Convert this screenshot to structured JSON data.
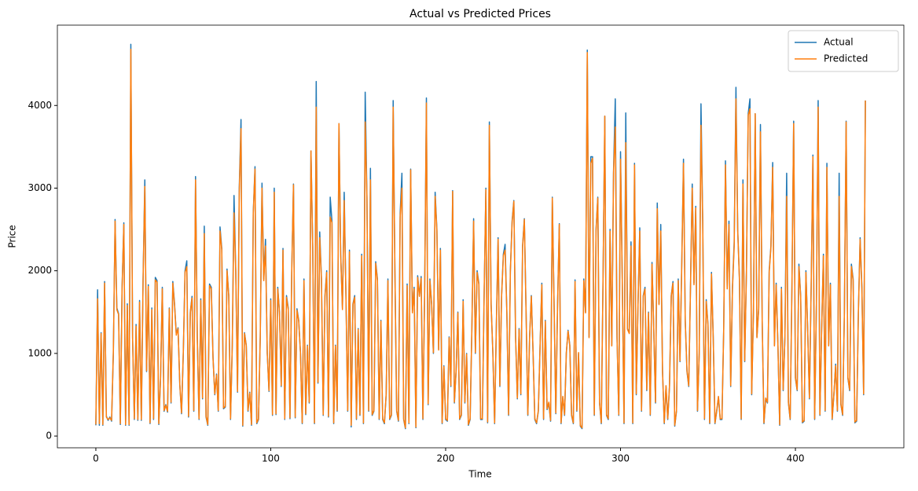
{
  "chart_data": {
    "type": "line",
    "title": "Actual vs Predicted Prices",
    "x_label": "Time",
    "y_label": "Price",
    "xlim": [
      -22,
      462
    ],
    "ylim": [
      -142,
      4972
    ],
    "xticks": [
      0,
      100,
      200,
      300,
      400
    ],
    "yticks": [
      0,
      1000,
      2000,
      3000,
      4000
    ],
    "legend": "upper right",
    "grid": false,
    "x": [
      0,
      1,
      2,
      3,
      4,
      5,
      6,
      7,
      8,
      9,
      10,
      11,
      12,
      13,
      14,
      15,
      16,
      17,
      18,
      19,
      20,
      21,
      22,
      23,
      24,
      25,
      26,
      27,
      28,
      29,
      30,
      31,
      32,
      33,
      34,
      35,
      36,
      37,
      38,
      39,
      40,
      41,
      42,
      43,
      44,
      45,
      46,
      47,
      48,
      49,
      50,
      51,
      52,
      53,
      54,
      55,
      56,
      57,
      58,
      59,
      60,
      61,
      62,
      63,
      64,
      65,
      66,
      67,
      68,
      69,
      70,
      71,
      72,
      73,
      74,
      75,
      76,
      77,
      78,
      79,
      80,
      81,
      82,
      83,
      84,
      85,
      86,
      87,
      88,
      89,
      90,
      91,
      92,
      93,
      94,
      95,
      96,
      97,
      98,
      99,
      100,
      101,
      102,
      103,
      104,
      105,
      106,
      107,
      108,
      109,
      110,
      111,
      112,
      113,
      114,
      115,
      116,
      117,
      118,
      119,
      120,
      121,
      122,
      123,
      124,
      125,
      126,
      127,
      128,
      129,
      130,
      131,
      132,
      133,
      134,
      135,
      136,
      137,
      138,
      139,
      140,
      141,
      142,
      143,
      144,
      145,
      146,
      147,
      148,
      149,
      150,
      151,
      152,
      153,
      154,
      155,
      156,
      157,
      158,
      159,
      160,
      161,
      162,
      163,
      164,
      165,
      166,
      167,
      168,
      169,
      170,
      171,
      172,
      173,
      174,
      175,
      176,
      177,
      178,
      179,
      180,
      181,
      182,
      183,
      184,
      185,
      186,
      187,
      188,
      189,
      190,
      191,
      192,
      193,
      194,
      195,
      196,
      197,
      198,
      199,
      200,
      201,
      202,
      203,
      204,
      205,
      206,
      207,
      208,
      209,
      210,
      211,
      212,
      213,
      214,
      215,
      216,
      217,
      218,
      219,
      220,
      221,
      222,
      223,
      224,
      225,
      226,
      227,
      228,
      229,
      230,
      231,
      232,
      233,
      234,
      235,
      236,
      237,
      238,
      239,
      240,
      241,
      242,
      243,
      244,
      245,
      246,
      247,
      248,
      249,
      250,
      251,
      252,
      253,
      254,
      255,
      256,
      257,
      258,
      259,
      260,
      261,
      262,
      263,
      264,
      265,
      266,
      267,
      268,
      269,
      270,
      271,
      272,
      273,
      274,
      275,
      276,
      277,
      278,
      279,
      280,
      281,
      282,
      283,
      284,
      285,
      286,
      287,
      288,
      289,
      290,
      291,
      292,
      293,
      294,
      295,
      296,
      297,
      298,
      299,
      300,
      301,
      302,
      303,
      304,
      305,
      306,
      307,
      308,
      309,
      310,
      311,
      312,
      313,
      314,
      315,
      316,
      317,
      318,
      319,
      320,
      321,
      322,
      323,
      324,
      325,
      326,
      327,
      328,
      329,
      330,
      331,
      332,
      333,
      334,
      335,
      336,
      337,
      338,
      339,
      340,
      341,
      342,
      343,
      344,
      345,
      346,
      347,
      348,
      349,
      350,
      351,
      352,
      353,
      354,
      355,
      356,
      357,
      358,
      359,
      360,
      361,
      362,
      363,
      364,
      365,
      366,
      367,
      368,
      369,
      370,
      371,
      372,
      373,
      374,
      375,
      376,
      377,
      378,
      379,
      380,
      381,
      382,
      383,
      384,
      385,
      386,
      387,
      388,
      389,
      390,
      391,
      392,
      393,
      394,
      395,
      396,
      397,
      398,
      399,
      400,
      401,
      402,
      403,
      404,
      405,
      406,
      407,
      408,
      409,
      410,
      411,
      412,
      413,
      414,
      415,
      416,
      417,
      418,
      419,
      420,
      421,
      422,
      423,
      424,
      425,
      426,
      427,
      428,
      429,
      430,
      431,
      432,
      433,
      434,
      435,
      436,
      437,
      438,
      439,
      440
    ],
    "series": [
      {
        "name": "Actual",
        "color": "#1f77b4",
        "values": [
          130,
          1770,
          130,
          1250,
          130,
          1870,
          240,
          190,
          230,
          180,
          1000,
          2620,
          1550,
          1480,
          140,
          1800,
          2580,
          130,
          1600,
          130,
          4740,
          1200,
          200,
          1350,
          190,
          1640,
          190,
          1900,
          3100,
          780,
          1830,
          150,
          1550,
          200,
          1920,
          1880,
          140,
          700,
          1800,
          300,
          380,
          290,
          1550,
          400,
          1870,
          1600,
          1230,
          1310,
          620,
          270,
          1000,
          2000,
          2120,
          230,
          1500,
          1690,
          300,
          3140,
          1200,
          200,
          1660,
          450,
          2540,
          230,
          130,
          1840,
          1800,
          950,
          500,
          750,
          300,
          2530,
          2270,
          330,
          350,
          2020,
          1700,
          200,
          1100,
          2910,
          2000,
          530,
          3000,
          3830,
          120,
          1250,
          1100,
          300,
          530,
          130,
          2700,
          3260,
          150,
          200,
          1200,
          3060,
          1900,
          2380,
          1000,
          540,
          1660,
          250,
          3000,
          260,
          1800,
          1500,
          600,
          2270,
          200,
          1700,
          1550,
          210,
          2000,
          3050,
          220,
          1540,
          1400,
          1000,
          150,
          1900,
          260,
          1100,
          400,
          3450,
          2300,
          150,
          4290,
          640,
          2470,
          1900,
          250,
          1700,
          2000,
          230,
          2890,
          2600,
          150,
          1100,
          300,
          3780,
          2200,
          1550,
          2950,
          1700,
          300,
          2250,
          110,
          1600,
          1700,
          200,
          1300,
          250,
          2200,
          150,
          4160,
          2900,
          300,
          3240,
          250,
          300,
          2110,
          1900,
          200,
          1400,
          200,
          150,
          500,
          1900,
          200,
          250,
          4060,
          2000,
          300,
          180,
          2700,
          3180,
          200,
          90,
          1840,
          150,
          3230,
          1500,
          1800,
          100,
          1940,
          1700,
          1930,
          200,
          1750,
          4090,
          380,
          1900,
          1600,
          1000,
          2950,
          2500,
          1050,
          2270,
          150,
          850,
          200,
          180,
          1200,
          600,
          2970,
          400,
          800,
          1500,
          200,
          250,
          1650,
          400,
          1000,
          130,
          200,
          1300,
          2630,
          1000,
          2000,
          1850,
          200,
          200,
          1700,
          3000,
          160,
          3800,
          1600,
          1000,
          150,
          1350,
          2400,
          600,
          1700,
          2200,
          2320,
          1500,
          250,
          2000,
          2600,
          2850,
          1200,
          450,
          1300,
          500,
          2300,
          2630,
          1500,
          250,
          1200,
          1700,
          1000,
          200,
          150,
          300,
          1100,
          1850,
          200,
          1400,
          320,
          400,
          180,
          2890,
          1600,
          270,
          1600,
          2570,
          150,
          470,
          250,
          1000,
          1280,
          1100,
          250,
          150,
          1890,
          300,
          1000,
          120,
          90,
          1900,
          1500,
          4670,
          1200,
          3380,
          3380,
          250,
          2500,
          2890,
          400,
          150,
          1900,
          3870,
          250,
          200,
          2500,
          1100,
          3200,
          4080,
          1200,
          250,
          3440,
          1900,
          150,
          3910,
          1300,
          1250,
          2350,
          150,
          3300,
          500,
          1600,
          2520,
          300,
          1700,
          1800,
          550,
          1500,
          250,
          2100,
          1300,
          400,
          2820,
          1600,
          2560,
          800,
          150,
          600,
          200,
          600,
          1700,
          1870,
          120,
          300,
          1900,
          900,
          2080,
          3350,
          1400,
          780,
          600,
          1800,
          3050,
          1850,
          2780,
          300,
          1000,
          4020,
          2600,
          200,
          1650,
          1350,
          150,
          1980,
          1200,
          150,
          300,
          470,
          200,
          200,
          1300,
          3330,
          1800,
          2600,
          600,
          1800,
          2350,
          4220,
          2500,
          1900,
          200,
          3100,
          900,
          2000,
          3900,
          4080,
          500,
          1500,
          3900,
          1200,
          1550,
          3770,
          1400,
          150,
          450,
          400,
          2000,
          2300,
          3310,
          1100,
          1850,
          1100,
          130,
          1800,
          550,
          1200,
          3180,
          400,
          200,
          1800,
          3810,
          700,
          550,
          2080,
          1700,
          160,
          180,
          2000,
          1300,
          450,
          1800,
          3400,
          200,
          1600,
          4060,
          250,
          1300,
          2200,
          300,
          3300,
          1100,
          1850,
          200,
          500,
          870,
          300,
          3180,
          380,
          250,
          1500,
          3810,
          700,
          550,
          2080,
          1900,
          160,
          180,
          1500,
          2400,
          1800,
          500,
          4060
        ]
      },
      {
        "name": "Predicted",
        "color": "#ff7f0e",
        "values": [
          140,
          1660,
          150,
          1240,
          140,
          1850,
          230,
          200,
          220,
          190,
          1020,
          2600,
          1530,
          1470,
          150,
          1780,
          2560,
          140,
          1580,
          140,
          4680,
          1190,
          210,
          1330,
          200,
          1620,
          200,
          1880,
          3020,
          790,
          1810,
          160,
          1530,
          210,
          1890,
          1860,
          150,
          710,
          1780,
          310,
          370,
          300,
          1540,
          410,
          1850,
          1580,
          1220,
          1300,
          630,
          280,
          1010,
          1980,
          2050,
          240,
          1490,
          1670,
          310,
          3100,
          1190,
          210,
          1640,
          460,
          2450,
          240,
          140,
          1820,
          1780,
          940,
          510,
          740,
          310,
          2480,
          2250,
          340,
          360,
          2000,
          1690,
          210,
          1090,
          2700,
          1980,
          540,
          2950,
          3720,
          130,
          1240,
          1090,
          310,
          520,
          140,
          2680,
          3230,
          160,
          210,
          1190,
          3000,
          1880,
          2300,
          1010,
          550,
          1640,
          260,
          2950,
          270,
          1780,
          1490,
          610,
          2250,
          210,
          1680,
          1530,
          220,
          1980,
          3040,
          230,
          1520,
          1390,
          1010,
          160,
          1880,
          270,
          1090,
          410,
          3450,
          2280,
          160,
          3980,
          650,
          2400,
          1880,
          260,
          1680,
          1980,
          240,
          2650,
          2580,
          160,
          1090,
          310,
          3780,
          2180,
          1530,
          2850,
          1690,
          310,
          2230,
          130,
          1590,
          1680,
          210,
          1290,
          260,
          2180,
          160,
          3800,
          2880,
          310,
          3100,
          260,
          310,
          2090,
          1880,
          210,
          1390,
          210,
          160,
          510,
          1880,
          210,
          260,
          3980,
          1980,
          310,
          190,
          2650,
          3000,
          210,
          100,
          1820,
          160,
          3220,
          1490,
          1780,
          110,
          1920,
          1690,
          1910,
          210,
          1730,
          4030,
          390,
          1880,
          1590,
          1010,
          2900,
          2480,
          1040,
          2250,
          160,
          840,
          210,
          190,
          1190,
          610,
          2960,
          410,
          790,
          1490,
          210,
          260,
          1630,
          410,
          990,
          140,
          210,
          1290,
          2600,
          1010,
          1980,
          1830,
          210,
          210,
          1690,
          2980,
          170,
          3760,
          1590,
          1010,
          160,
          1340,
          2380,
          610,
          1690,
          2180,
          2250,
          1490,
          260,
          1980,
          2580,
          2840,
          1190,
          460,
          1290,
          510,
          2280,
          2620,
          1490,
          260,
          1190,
          1690,
          1010,
          210,
          160,
          310,
          1090,
          1830,
          210,
          1390,
          330,
          410,
          190,
          2880,
          1590,
          280,
          1590,
          2560,
          160,
          480,
          260,
          1010,
          1270,
          1090,
          260,
          160,
          1870,
          310,
          1010,
          130,
          100,
          1880,
          1490,
          4640,
          1190,
          3300,
          3360,
          260,
          2480,
          2880,
          410,
          160,
          1880,
          3870,
          260,
          210,
          2480,
          1090,
          3180,
          3740,
          1190,
          260,
          3350,
          1880,
          160,
          3550,
          1290,
          1240,
          2300,
          160,
          3280,
          510,
          1590,
          2480,
          310,
          1690,
          1780,
          560,
          1490,
          260,
          2080,
          1290,
          410,
          2750,
          1590,
          2480,
          790,
          160,
          610,
          210,
          610,
          1690,
          1850,
          130,
          310,
          1880,
          910,
          2050,
          3300,
          1390,
          790,
          610,
          1780,
          3000,
          1830,
          2760,
          310,
          1010,
          3760,
          2580,
          210,
          1630,
          1340,
          160,
          1960,
          1190,
          160,
          310,
          480,
          210,
          210,
          1290,
          3280,
          1780,
          2560,
          610,
          1780,
          2300,
          4080,
          2480,
          1880,
          210,
          3050,
          910,
          1980,
          3880,
          3960,
          510,
          1490,
          3900,
          1190,
          1530,
          3680,
          1390,
          160,
          460,
          410,
          1980,
          2280,
          3250,
          1090,
          1830,
          1090,
          140,
          1780,
          560,
          1190,
          2900,
          410,
          210,
          1780,
          3780,
          710,
          560,
          2050,
          1690,
          170,
          190,
          1980,
          1290,
          460,
          1780,
          3380,
          210,
          1590,
          3980,
          260,
          1290,
          2180,
          310,
          3250,
          1090,
          1830,
          210,
          510,
          850,
          310,
          2900,
          390,
          260,
          1490,
          3800,
          710,
          560,
          2050,
          1880,
          170,
          190,
          1490,
          2380,
          1780,
          510,
          4060
        ]
      }
    ]
  }
}
